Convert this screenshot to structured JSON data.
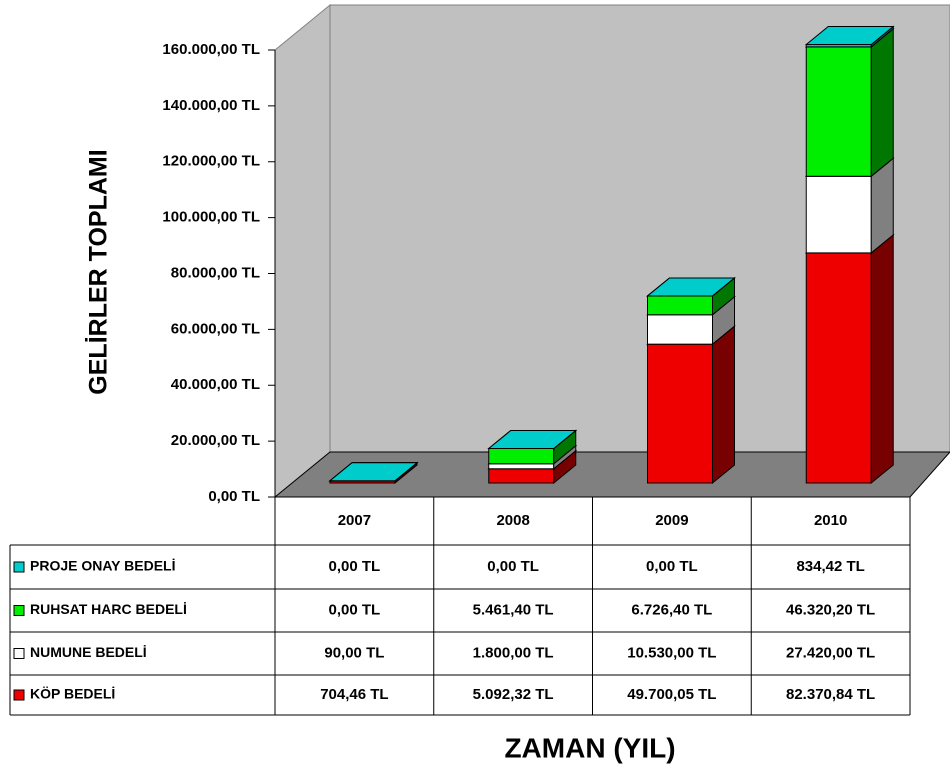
{
  "chart_data": {
    "type": "bar3d_stacked",
    "y_label": "GELİRLER TOPLAMI",
    "x_label": "ZAMAN (YIL)",
    "categories": [
      "2007",
      "2008",
      "2009",
      "2010"
    ],
    "series": [
      {
        "name": "PROJE ONAY BEDELİ",
        "color": "#00cccc",
        "values": [
          0,
          0,
          0,
          834.42
        ],
        "value_labels": [
          "0,00 TL",
          "0,00 TL",
          "0,00 TL",
          "834,42 TL"
        ]
      },
      {
        "name": "RUHSAT HARC BEDELİ",
        "color": "#00ee00",
        "values": [
          0,
          5461.4,
          6726.4,
          46320.2
        ],
        "value_labels": [
          "0,00 TL",
          "5.461,40 TL",
          "6.726,40 TL",
          "46.320,20 TL"
        ]
      },
      {
        "name": "NUMUNE BEDELİ",
        "color": "#ffffff",
        "values": [
          90,
          1800,
          10530,
          27420
        ],
        "value_labels": [
          "90,00 TL",
          "1.800,00 TL",
          "10.530,00 TL",
          "27.420,00 TL"
        ]
      },
      {
        "name": "KÖP BEDELİ",
        "color": "#ee0000",
        "values": [
          704.46,
          5092.32,
          49700.05,
          82370.84
        ],
        "value_labels": [
          "704,46 TL",
          "5.092,32 TL",
          "49.700,05 TL",
          "82.370,84 TL"
        ]
      }
    ],
    "ylim": [
      0,
      160000
    ],
    "yticks": [
      {
        "value": 0,
        "label": "0,00 TL"
      },
      {
        "value": 20000,
        "label": "20.000,00 TL"
      },
      {
        "value": 40000,
        "label": "40.000,00 TL"
      },
      {
        "value": 60000,
        "label": "60.000,00 TL"
      },
      {
        "value": 80000,
        "label": "80.000,00 TL"
      },
      {
        "value": 100000,
        "label": "100.000,00 TL"
      },
      {
        "value": 120000,
        "label": "120.000,00 TL"
      },
      {
        "value": 140000,
        "label": "140.000,00 TL"
      },
      {
        "value": 160000,
        "label": "160.000,00 TL"
      }
    ],
    "stack_order": "bottom-up-reverse"
  }
}
